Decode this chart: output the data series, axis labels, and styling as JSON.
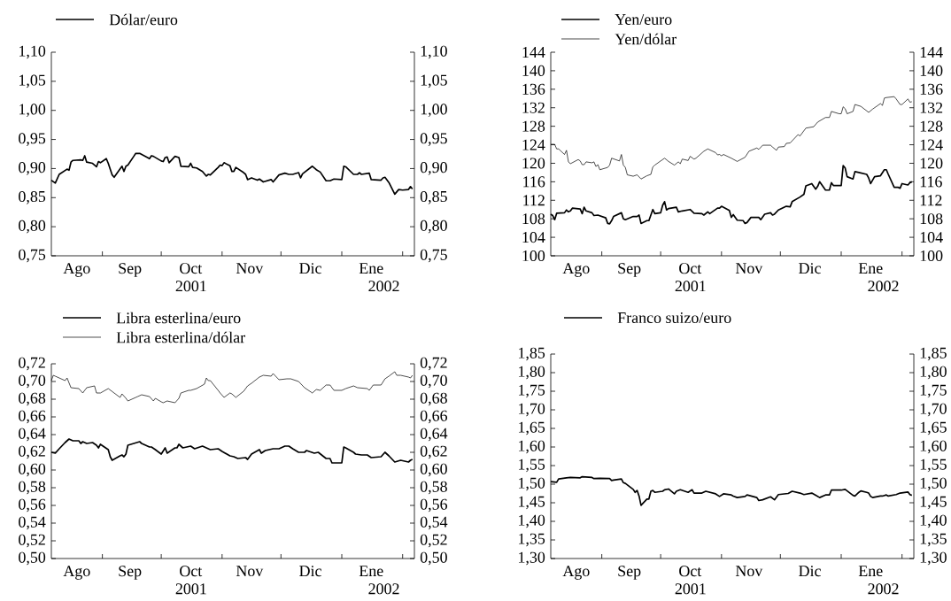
{
  "chart_data": [
    {
      "type": "line",
      "xlim": [
        "2001-08-06",
        "2002-02-07"
      ],
      "xticks": [
        {
          "value": "2001-08-19",
          "label": "Ago"
        },
        {
          "value": "2001-09-01",
          "label": null
        },
        {
          "value": "2001-09-15",
          "label": "Sep"
        },
        {
          "value": "2001-10-01",
          "label": null
        },
        {
          "value": "2001-10-16",
          "label": "Oct"
        },
        {
          "value": "2001-11-01",
          "label": null
        },
        {
          "value": "2001-11-15",
          "label": "Nov"
        },
        {
          "value": "2001-12-01",
          "label": null
        },
        {
          "value": "2001-12-16",
          "label": "Dic"
        },
        {
          "value": "2002-01-01",
          "label": null
        },
        {
          "value": "2002-01-16",
          "label": "Ene"
        },
        {
          "value": "2002-02-01",
          "label": null
        }
      ],
      "ylim": [
        0.75,
        1.1
      ],
      "yticks": [
        {
          "value": 0.75,
          "label": "0,75"
        },
        {
          "value": 0.8,
          "label": "0,80"
        },
        {
          "value": 0.85,
          "label": "0,85"
        },
        {
          "value": 0.9,
          "label": "0,90"
        },
        {
          "value": 0.95,
          "label": "0,95"
        },
        {
          "value": 1.0,
          "label": "1,00"
        },
        {
          "value": 1.05,
          "label": "1,05"
        },
        {
          "value": 1.1,
          "label": "1,10"
        }
      ],
      "y2lim": [
        0.75,
        1.1
      ],
      "y2ticks": [
        {
          "value": 0.75,
          "label": "0,75"
        },
        {
          "value": 0.8,
          "label": "0,80"
        },
        {
          "value": 0.85,
          "label": "0,85"
        },
        {
          "value": 0.9,
          "label": "0,90"
        },
        {
          "value": 0.95,
          "label": "0,95"
        },
        {
          "value": 1.0,
          "label": "1,00"
        },
        {
          "value": 1.05,
          "label": "1,05"
        },
        {
          "value": 1.1,
          "label": "1,10"
        }
      ],
      "legend": "top left",
      "annotations": [
        "2001",
        "2002"
      ],
      "series": [
        {
          "name": "Dólar/euro",
          "color": "#000000",
          "x": [
            "2001-08-06",
            "2001-08-08",
            "2001-08-10",
            "2001-08-14",
            "2001-08-15",
            "2001-08-16",
            "2001-08-17",
            "2001-08-21",
            "2001-08-22",
            "2001-08-23",
            "2001-08-24",
            "2001-08-27",
            "2001-08-29",
            "2001-08-30",
            "2001-08-31",
            "2001-09-03",
            "2001-09-04",
            "2001-09-06",
            "2001-09-07",
            "2001-09-11",
            "2001-09-12",
            "2001-09-13",
            "2001-09-14",
            "2001-09-17",
            "2001-09-18",
            "2001-09-20",
            "2001-09-24",
            "2001-09-25",
            "2001-09-26",
            "2001-09-27",
            "2001-10-01",
            "2001-10-02",
            "2001-10-03",
            "2001-10-04",
            "2001-10-05",
            "2001-10-08",
            "2001-10-10",
            "2001-10-11",
            "2001-10-15",
            "2001-10-16",
            "2001-10-17",
            "2001-10-19",
            "2001-10-22",
            "2001-10-24",
            "2001-10-25",
            "2001-10-26",
            "2001-10-30",
            "2001-10-31",
            "2001-11-01",
            "2001-11-02",
            "2001-11-05",
            "2001-11-06",
            "2001-11-07",
            "2001-11-08",
            "2001-11-12",
            "2001-11-13",
            "2001-11-14",
            "2001-11-16",
            "2001-11-19",
            "2001-11-20",
            "2001-11-22",
            "2001-11-26",
            "2001-11-27",
            "2001-11-30",
            "2001-12-03",
            "2001-12-05",
            "2001-12-07",
            "2001-12-10",
            "2001-12-11",
            "2001-12-12",
            "2001-12-17",
            "2001-12-19",
            "2001-12-21",
            "2001-12-24",
            "2001-12-26",
            "2001-12-28",
            "2002-01-01",
            "2002-01-02",
            "2002-01-03",
            "2002-01-07",
            "2002-01-09",
            "2002-01-10",
            "2002-01-11",
            "2002-01-15",
            "2002-01-16",
            "2002-01-21",
            "2002-01-22",
            "2002-01-23",
            "2002-01-25",
            "2002-01-28",
            "2002-01-30",
            "2002-02-01",
            "2002-02-04",
            "2002-02-05",
            "2002-02-06"
          ],
          "values": [
            0.88,
            0.875,
            0.89,
            0.899,
            0.897,
            0.911,
            0.914,
            0.915,
            0.914,
            0.922,
            0.911,
            0.909,
            0.903,
            0.912,
            0.91,
            0.917,
            0.909,
            0.889,
            0.885,
            0.904,
            0.895,
            0.904,
            0.906,
            0.921,
            0.926,
            0.926,
            0.919,
            0.917,
            0.922,
            0.921,
            0.913,
            0.912,
            0.919,
            0.92,
            0.91,
            0.921,
            0.919,
            0.904,
            0.903,
            0.909,
            0.902,
            0.901,
            0.895,
            0.887,
            0.89,
            0.889,
            0.902,
            0.906,
            0.905,
            0.91,
            0.905,
            0.895,
            0.895,
            0.902,
            0.893,
            0.89,
            0.881,
            0.884,
            0.88,
            0.882,
            0.877,
            0.881,
            0.877,
            0.889,
            0.892,
            0.89,
            0.89,
            0.893,
            0.884,
            0.891,
            0.904,
            0.898,
            0.894,
            0.879,
            0.879,
            0.882,
            0.881,
            0.904,
            0.903,
            0.89,
            0.89,
            0.893,
            0.89,
            0.892,
            0.881,
            0.88,
            0.884,
            0.885,
            0.876,
            0.856,
            0.864,
            0.863,
            0.864,
            0.869,
            0.865
          ]
        }
      ]
    },
    {
      "type": "line",
      "xlim": [
        "2001-08-06",
        "2002-02-07"
      ],
      "xticks": [
        {
          "value": "2001-08-19",
          "label": "Ago"
        },
        {
          "value": "2001-09-01",
          "label": null
        },
        {
          "value": "2001-09-15",
          "label": "Sep"
        },
        {
          "value": "2001-10-01",
          "label": null
        },
        {
          "value": "2001-10-16",
          "label": "Oct"
        },
        {
          "value": "2001-11-01",
          "label": null
        },
        {
          "value": "2001-11-15",
          "label": "Nov"
        },
        {
          "value": "2001-12-01",
          "label": null
        },
        {
          "value": "2001-12-16",
          "label": "Dic"
        },
        {
          "value": "2002-01-01",
          "label": null
        },
        {
          "value": "2002-01-16",
          "label": "Ene"
        },
        {
          "value": "2002-02-01",
          "label": null
        }
      ],
      "ylim": [
        100,
        144
      ],
      "yticks": [
        100,
        104,
        108,
        112,
        116,
        120,
        124,
        128,
        132,
        136,
        140,
        144
      ],
      "y2lim": [
        100,
        144
      ],
      "y2ticks": [
        100,
        104,
        108,
        112,
        116,
        120,
        124,
        128,
        132,
        136,
        140,
        144
      ],
      "legend": "top left",
      "annotations": [
        "2001",
        "2002"
      ],
      "series": [
        {
          "name": "Yen/euro",
          "color": "#000000",
          "x": [
            "2001-08-06",
            "2001-08-07",
            "2001-08-08",
            "2001-08-09",
            "2001-08-13",
            "2001-08-14",
            "2001-08-15",
            "2001-08-16",
            "2001-08-17",
            "2001-08-21",
            "2001-08-22",
            "2001-08-23",
            "2001-08-24",
            "2001-08-27",
            "2001-08-28",
            "2001-08-30",
            "2001-09-03",
            "2001-09-04",
            "2001-09-05",
            "2001-09-06",
            "2001-09-07",
            "2001-09-11",
            "2001-09-12",
            "2001-09-13",
            "2001-09-17",
            "2001-09-19",
            "2001-09-20",
            "2001-09-21",
            "2001-09-24",
            "2001-09-25",
            "2001-09-27",
            "2001-09-28",
            "2001-10-01",
            "2001-10-02",
            "2001-10-03",
            "2001-10-04",
            "2001-10-05",
            "2001-10-09",
            "2001-10-10",
            "2001-10-12",
            "2001-10-16",
            "2001-10-18",
            "2001-10-22",
            "2001-10-23",
            "2001-10-25",
            "2001-10-26",
            "2001-10-30",
            "2001-10-31",
            "2001-11-01",
            "2001-11-05",
            "2001-11-06",
            "2001-11-07",
            "2001-11-09",
            "2001-11-12",
            "2001-11-13",
            "2001-11-14",
            "2001-11-16",
            "2001-11-20",
            "2001-11-21",
            "2001-11-23",
            "2001-11-26",
            "2001-11-27",
            "2001-11-28",
            "2001-11-30",
            "2001-12-04",
            "2001-12-06",
            "2001-12-07",
            "2001-12-11",
            "2001-12-13",
            "2001-12-14",
            "2001-12-17",
            "2001-12-19",
            "2001-12-20",
            "2001-12-21",
            "2001-12-24",
            "2001-12-26",
            "2001-12-27",
            "2001-12-28",
            "2002-01-01",
            "2002-01-02",
            "2002-01-03",
            "2002-01-04",
            "2002-01-07",
            "2002-01-08",
            "2002-01-10",
            "2002-01-14",
            "2002-01-15",
            "2002-01-16",
            "2002-01-18",
            "2002-01-21",
            "2002-01-23",
            "2002-01-24",
            "2002-01-25",
            "2002-01-28",
            "2002-01-30",
            "2002-01-31",
            "2002-02-01",
            "2002-02-04",
            "2002-02-05",
            "2002-02-06"
          ],
          "values": [
            109.0,
            108.7,
            107.8,
            109.2,
            109.3,
            109.9,
            109.5,
            109.7,
            110.3,
            110.1,
            109.1,
            110.5,
            109.7,
            109.3,
            108.7,
            108.8,
            108.2,
            107.0,
            106.9,
            107.6,
            108.5,
            109.3,
            108.0,
            107.8,
            108.5,
            108.5,
            108.8,
            107.0,
            107.6,
            107.6,
            110.0,
            109.1,
            109.3,
            110.9,
            111.7,
            109.9,
            110.2,
            110.5,
            109.5,
            109.7,
            110.0,
            109.2,
            109.1,
            108.8,
            109.5,
            109.1,
            110.3,
            110.3,
            110.7,
            109.8,
            108.3,
            108.9,
            107.7,
            107.6,
            107.0,
            107.2,
            108.3,
            108.3,
            107.8,
            109.0,
            109.3,
            108.8,
            109.0,
            109.9,
            110.7,
            110.6,
            111.7,
            112.7,
            113.3,
            115.1,
            115.6,
            114.4,
            115.0,
            116.0,
            114.2,
            114.2,
            115.8,
            115.2,
            115.2,
            119.5,
            119.0,
            117.1,
            116.6,
            118.2,
            118.0,
            117.6,
            116.8,
            115.6,
            117.1,
            117.3,
            118.6,
            118.6,
            117.6,
            114.8,
            114.8,
            114.6,
            115.6,
            115.3,
            115.8,
            116.0
          ]
        },
        {
          "name": "Yen/dólar",
          "color": "#000000",
          "x": [
            "2001-08-06",
            "2001-08-08",
            "2001-08-09",
            "2001-08-10",
            "2001-08-13",
            "2001-08-14",
            "2001-08-15",
            "2001-08-16",
            "2001-08-20",
            "2001-08-21",
            "2001-08-22",
            "2001-08-23",
            "2001-08-24",
            "2001-08-27",
            "2001-08-28",
            "2001-08-29",
            "2001-08-30",
            "2001-08-31",
            "2001-09-04",
            "2001-09-05",
            "2001-09-06",
            "2001-09-10",
            "2001-09-11",
            "2001-09-12",
            "2001-09-13",
            "2001-09-14",
            "2001-09-17",
            "2001-09-19",
            "2001-09-21",
            "2001-09-24",
            "2001-09-26",
            "2001-09-27",
            "2001-09-28",
            "2001-10-03",
            "2001-10-05",
            "2001-10-08",
            "2001-10-10",
            "2001-10-11",
            "2001-10-12",
            "2001-10-15",
            "2001-10-16",
            "2001-10-18",
            "2001-10-19",
            "2001-10-23",
            "2001-10-25",
            "2001-10-29",
            "2001-10-30",
            "2001-10-31",
            "2001-11-01",
            "2001-11-02",
            "2001-11-06",
            "2001-11-09",
            "2001-11-13",
            "2001-11-15",
            "2001-11-19",
            "2001-11-20",
            "2001-11-22",
            "2001-11-26",
            "2001-11-27",
            "2001-11-29",
            "2001-11-30",
            "2001-12-03",
            "2001-12-04",
            "2001-12-06",
            "2001-12-10",
            "2001-12-11",
            "2001-12-14",
            "2001-12-18",
            "2001-12-20",
            "2001-12-24",
            "2001-12-26",
            "2001-12-27",
            "2001-12-31",
            "2002-01-01",
            "2002-01-02",
            "2002-01-03",
            "2002-01-04",
            "2002-01-07",
            "2002-01-08",
            "2002-01-11",
            "2002-01-15",
            "2002-01-17",
            "2002-01-21",
            "2002-01-22",
            "2002-01-23",
            "2002-01-24",
            "2002-01-28",
            "2002-01-29",
            "2002-01-31",
            "2002-02-01",
            "2002-02-04",
            "2002-02-05",
            "2002-02-06"
          ],
          "values": [
            124.1,
            124.1,
            123.1,
            123.1,
            121.9,
            122.8,
            120.3,
            119.9,
            120.8,
            120.5,
            119.7,
            119.7,
            120.3,
            120.1,
            120.3,
            119.3,
            119.7,
            118.6,
            119.1,
            119.6,
            121.1,
            120.5,
            121.9,
            119.6,
            119.1,
            117.5,
            117.2,
            117.5,
            116.6,
            117.3,
            117.6,
            119.2,
            119.6,
            121.1,
            120.4,
            119.6,
            120.3,
            119.9,
            120.9,
            120.6,
            121.5,
            120.9,
            121.1,
            122.6,
            123.1,
            122.3,
            121.8,
            121.9,
            121.6,
            121.9,
            121.1,
            120.4,
            121.3,
            122.6,
            123.3,
            123.0,
            123.9,
            123.9,
            123.5,
            122.8,
            123.5,
            123.6,
            124.3,
            124.4,
            126.2,
            125.9,
            127.6,
            127.9,
            128.9,
            129.9,
            129.9,
            131.2,
            130.7,
            130.7,
            132.2,
            131.8,
            130.7,
            131.2,
            132.7,
            132.3,
            131.0,
            131.7,
            132.9,
            132.5,
            134.1,
            134.2,
            134.4,
            133.9,
            132.7,
            132.7,
            133.9,
            133.2,
            133.3
          ]
        }
      ]
    },
    {
      "type": "line",
      "xlim": [
        "2001-08-06",
        "2002-02-07"
      ],
      "xticks": [
        {
          "value": "2001-08-19",
          "label": "Ago"
        },
        {
          "value": "2001-09-01",
          "label": null
        },
        {
          "value": "2001-09-15",
          "label": "Sep"
        },
        {
          "value": "2001-10-01",
          "label": null
        },
        {
          "value": "2001-10-16",
          "label": "Oct"
        },
        {
          "value": "2001-11-01",
          "label": null
        },
        {
          "value": "2001-11-15",
          "label": "Nov"
        },
        {
          "value": "2001-12-01",
          "label": null
        },
        {
          "value": "2001-12-16",
          "label": "Dic"
        },
        {
          "value": "2002-01-01",
          "label": null
        },
        {
          "value": "2002-01-16",
          "label": "Ene"
        },
        {
          "value": "2002-02-01",
          "label": null
        }
      ],
      "ylim": [
        0.5,
        0.72
      ],
      "yticks": [
        {
          "value": 0.5,
          "label": "0,50"
        },
        {
          "value": 0.52,
          "label": "0,52"
        },
        {
          "value": 0.54,
          "label": "0,54"
        },
        {
          "value": 0.56,
          "label": "0,56"
        },
        {
          "value": 0.58,
          "label": "0,58"
        },
        {
          "value": 0.6,
          "label": "0,60"
        },
        {
          "value": 0.62,
          "label": "0,62"
        },
        {
          "value": 0.64,
          "label": "0,64"
        },
        {
          "value": 0.66,
          "label": "0,66"
        },
        {
          "value": 0.68,
          "label": "0,68"
        },
        {
          "value": 0.7,
          "label": "0,70"
        },
        {
          "value": 0.72,
          "label": "0,72"
        }
      ],
      "y2lim": [
        0.5,
        0.72
      ],
      "y2ticks": [
        {
          "value": 0.5,
          "label": "0,50"
        },
        {
          "value": 0.52,
          "label": "0,52"
        },
        {
          "value": 0.54,
          "label": "0,54"
        },
        {
          "value": 0.56,
          "label": "0,56"
        },
        {
          "value": 0.58,
          "label": "0,58"
        },
        {
          "value": 0.6,
          "label": "0,60"
        },
        {
          "value": 0.62,
          "label": "0,62"
        },
        {
          "value": 0.64,
          "label": "0,64"
        },
        {
          "value": 0.66,
          "label": "0,66"
        },
        {
          "value": 0.68,
          "label": "0,68"
        },
        {
          "value": 0.7,
          "label": "0,70"
        },
        {
          "value": 0.72,
          "label": "0,72"
        }
      ],
      "legend": "top left",
      "annotations": [
        "2001",
        "2002"
      ],
      "series": [
        {
          "name": "Libra esterlina/euro",
          "color": "#000000",
          "x": [
            "2001-08-06",
            "2001-08-08",
            "2001-08-10",
            "2001-08-13",
            "2001-08-15",
            "2001-08-17",
            "2001-08-20",
            "2001-08-21",
            "2001-08-22",
            "2001-08-24",
            "2001-08-27",
            "2001-08-29",
            "2001-08-30",
            "2001-08-31",
            "2001-09-04",
            "2001-09-05",
            "2001-09-06",
            "2001-09-10",
            "2001-09-11",
            "2001-09-12",
            "2001-09-13",
            "2001-09-14",
            "2001-09-17",
            "2001-09-20",
            "2001-09-21",
            "2001-09-25",
            "2001-09-26",
            "2001-09-28",
            "2001-10-01",
            "2001-10-03",
            "2001-10-04",
            "2001-10-08",
            "2001-10-09",
            "2001-10-10",
            "2001-10-12",
            "2001-10-16",
            "2001-10-18",
            "2001-10-22",
            "2001-10-24",
            "2001-10-26",
            "2001-10-30",
            "2001-11-01",
            "2001-11-05",
            "2001-11-07",
            "2001-11-09",
            "2001-11-13",
            "2001-11-14",
            "2001-11-16",
            "2001-11-20",
            "2001-11-21",
            "2001-11-23",
            "2001-11-27",
            "2001-11-30",
            "2001-12-03",
            "2001-12-05",
            "2001-12-07",
            "2001-12-10",
            "2001-12-13",
            "2001-12-14",
            "2001-12-18",
            "2001-12-20",
            "2001-12-24",
            "2001-12-26",
            "2001-12-27",
            "2002-01-01",
            "2002-01-02",
            "2002-01-03",
            "2002-01-07",
            "2002-01-08",
            "2002-01-11",
            "2002-01-14",
            "2002-01-16",
            "2002-01-21",
            "2002-01-23",
            "2002-01-25",
            "2002-01-28",
            "2002-01-31",
            "2002-02-04",
            "2002-02-05",
            "2002-02-06"
          ],
          "values": [
            0.62,
            0.619,
            0.624,
            0.631,
            0.635,
            0.633,
            0.633,
            0.63,
            0.632,
            0.63,
            0.631,
            0.628,
            0.625,
            0.629,
            0.623,
            0.615,
            0.611,
            0.616,
            0.617,
            0.615,
            0.618,
            0.628,
            0.63,
            0.632,
            0.63,
            0.626,
            0.626,
            0.623,
            0.618,
            0.625,
            0.619,
            0.625,
            0.625,
            0.629,
            0.625,
            0.627,
            0.624,
            0.627,
            0.625,
            0.623,
            0.624,
            0.621,
            0.616,
            0.615,
            0.613,
            0.614,
            0.612,
            0.618,
            0.623,
            0.619,
            0.622,
            0.624,
            0.624,
            0.627,
            0.627,
            0.624,
            0.62,
            0.62,
            0.622,
            0.619,
            0.62,
            0.613,
            0.613,
            0.608,
            0.608,
            0.626,
            0.625,
            0.62,
            0.618,
            0.617,
            0.617,
            0.614,
            0.615,
            0.62,
            0.616,
            0.609,
            0.611,
            0.609,
            0.611,
            0.612
          ]
        },
        {
          "name": "Libra esterlina/dólar",
          "color": "#000000",
          "x": [
            "2001-08-06",
            "2001-08-07",
            "2001-08-08",
            "2001-08-13",
            "2001-08-14",
            "2001-08-16",
            "2001-08-20",
            "2001-08-22",
            "2001-08-24",
            "2001-08-28",
            "2001-08-29",
            "2001-08-31",
            "2001-09-04",
            "2001-09-07",
            "2001-09-10",
            "2001-09-11",
            "2001-09-13",
            "2001-09-14",
            "2001-09-18",
            "2001-09-19",
            "2001-09-21",
            "2001-09-25",
            "2001-09-27",
            "2001-09-28",
            "2001-10-01",
            "2001-10-02",
            "2001-10-04",
            "2001-10-08",
            "2001-10-10",
            "2001-10-11",
            "2001-10-15",
            "2001-10-16",
            "2001-10-19",
            "2001-10-23",
            "2001-10-24",
            "2001-10-25",
            "2001-10-26",
            "2001-10-30",
            "2001-10-31",
            "2001-11-02",
            "2001-11-05",
            "2001-11-06",
            "2001-11-08",
            "2001-11-12",
            "2001-11-14",
            "2001-11-16",
            "2001-11-20",
            "2001-11-22",
            "2001-11-26",
            "2001-11-27",
            "2001-11-30",
            "2001-12-04",
            "2001-12-06",
            "2001-12-10",
            "2001-12-13",
            "2001-12-17",
            "2001-12-19",
            "2001-12-21",
            "2001-12-24",
            "2001-12-26",
            "2001-12-28",
            "2002-01-01",
            "2002-01-03",
            "2002-01-07",
            "2002-01-09",
            "2002-01-14",
            "2002-01-15",
            "2002-01-17",
            "2002-01-21",
            "2002-01-23",
            "2002-01-25",
            "2002-01-28",
            "2002-01-29",
            "2002-01-31",
            "2002-02-04",
            "2002-02-05",
            "2002-02-06"
          ],
          "values": [
            0.701,
            0.707,
            0.706,
            0.701,
            0.704,
            0.693,
            0.692,
            0.687,
            0.693,
            0.695,
            0.687,
            0.687,
            0.692,
            0.687,
            0.682,
            0.686,
            0.681,
            0.678,
            0.682,
            0.683,
            0.685,
            0.683,
            0.678,
            0.681,
            0.677,
            0.676,
            0.678,
            0.676,
            0.681,
            0.687,
            0.69,
            0.69,
            0.692,
            0.697,
            0.704,
            0.701,
            0.701,
            0.69,
            0.687,
            0.682,
            0.687,
            0.686,
            0.682,
            0.689,
            0.695,
            0.698,
            0.705,
            0.707,
            0.706,
            0.709,
            0.702,
            0.703,
            0.703,
            0.7,
            0.693,
            0.687,
            0.691,
            0.69,
            0.696,
            0.696,
            0.69,
            0.69,
            0.692,
            0.695,
            0.693,
            0.692,
            0.69,
            0.696,
            0.696,
            0.703,
            0.706,
            0.711,
            0.707,
            0.707,
            0.705,
            0.704,
            0.707
          ]
        }
      ]
    },
    {
      "type": "line",
      "xlim": [
        "2001-08-06",
        "2002-02-07"
      ],
      "xticks": [
        {
          "value": "2001-08-19",
          "label": "Ago"
        },
        {
          "value": "2001-09-01",
          "label": null
        },
        {
          "value": "2001-09-15",
          "label": "Sep"
        },
        {
          "value": "2001-10-01",
          "label": null
        },
        {
          "value": "2001-10-16",
          "label": "Oct"
        },
        {
          "value": "2001-11-01",
          "label": null
        },
        {
          "value": "2001-11-15",
          "label": "Nov"
        },
        {
          "value": "2001-12-01",
          "label": null
        },
        {
          "value": "2001-12-16",
          "label": "Dic"
        },
        {
          "value": "2002-01-01",
          "label": null
        },
        {
          "value": "2002-01-16",
          "label": "Ene"
        },
        {
          "value": "2002-02-01",
          "label": null
        }
      ],
      "ylim": [
        1.3,
        1.85
      ],
      "yticks": [
        {
          "value": 1.3,
          "label": "1,30"
        },
        {
          "value": 1.35,
          "label": "1,35"
        },
        {
          "value": 1.4,
          "label": "1,40"
        },
        {
          "value": 1.45,
          "label": "1,45"
        },
        {
          "value": 1.5,
          "label": "1,50"
        },
        {
          "value": 1.55,
          "label": "1,55"
        },
        {
          "value": 1.6,
          "label": "1,60"
        },
        {
          "value": 1.65,
          "label": "1,65"
        },
        {
          "value": 1.7,
          "label": "1,70"
        },
        {
          "value": 1.75,
          "label": "1,75"
        },
        {
          "value": 1.8,
          "label": "1,80"
        },
        {
          "value": 1.85,
          "label": "1,85"
        }
      ],
      "y2lim": [
        1.3,
        1.85
      ],
      "y2ticks": [
        {
          "value": 1.3,
          "label": "1,30"
        },
        {
          "value": 1.35,
          "label": "1,35"
        },
        {
          "value": 1.4,
          "label": "1,40"
        },
        {
          "value": 1.45,
          "label": "1,45"
        },
        {
          "value": 1.5,
          "label": "1,50"
        },
        {
          "value": 1.55,
          "label": "1,55"
        },
        {
          "value": 1.6,
          "label": "1,60"
        },
        {
          "value": 1.65,
          "label": "1,65"
        },
        {
          "value": 1.7,
          "label": "1,70"
        },
        {
          "value": 1.75,
          "label": "1,75"
        },
        {
          "value": 1.8,
          "label": "1,80"
        },
        {
          "value": 1.85,
          "label": "1,85"
        }
      ],
      "legend": "top left",
      "annotations": [
        "2001",
        "2002"
      ],
      "series": [
        {
          "name": "Franco suizo/euro",
          "color": "#000000",
          "x": [
            "2001-08-06",
            "2001-08-09",
            "2001-08-10",
            "2001-08-14",
            "2001-08-16",
            "2001-08-21",
            "2001-08-22",
            "2001-08-27",
            "2001-08-28",
            "2001-08-31",
            "2001-09-05",
            "2001-09-06",
            "2001-09-07",
            "2001-09-11",
            "2001-09-12",
            "2001-09-13",
            "2001-09-17",
            "2001-09-18",
            "2001-09-19",
            "2001-09-20",
            "2001-09-21",
            "2001-09-24",
            "2001-09-25",
            "2001-09-26",
            "2001-09-27",
            "2001-09-28",
            "2001-10-02",
            "2001-10-03",
            "2001-10-05",
            "2001-10-08",
            "2001-10-09",
            "2001-10-11",
            "2001-10-15",
            "2001-10-17",
            "2001-10-18",
            "2001-10-22",
            "2001-10-24",
            "2001-10-29",
            "2001-10-31",
            "2001-11-02",
            "2001-11-06",
            "2001-11-07",
            "2001-11-09",
            "2001-11-13",
            "2001-11-14",
            "2001-11-19",
            "2001-11-20",
            "2001-11-22",
            "2001-11-26",
            "2001-11-28",
            "2001-11-30",
            "2001-12-05",
            "2001-12-07",
            "2001-12-11",
            "2001-12-13",
            "2001-12-17",
            "2001-12-19",
            "2001-12-21",
            "2001-12-24",
            "2001-12-26",
            "2001-12-27",
            "2002-01-01",
            "2002-01-03",
            "2002-01-07",
            "2002-01-08",
            "2002-01-10",
            "2002-01-11",
            "2002-01-14",
            "2002-01-15",
            "2002-01-16",
            "2002-01-17",
            "2002-01-21",
            "2002-01-22",
            "2002-01-24",
            "2002-01-25",
            "2002-01-29",
            "2002-01-31",
            "2002-02-04",
            "2002-02-05",
            "2002-02-06"
          ],
          "values": [
            1.507,
            1.505,
            1.514,
            1.517,
            1.518,
            1.517,
            1.52,
            1.518,
            1.515,
            1.516,
            1.515,
            1.51,
            1.511,
            1.514,
            1.504,
            1.502,
            1.486,
            1.478,
            1.483,
            1.468,
            1.443,
            1.46,
            1.46,
            1.481,
            1.483,
            1.478,
            1.481,
            1.485,
            1.487,
            1.474,
            1.481,
            1.485,
            1.478,
            1.485,
            1.476,
            1.476,
            1.481,
            1.474,
            1.467,
            1.474,
            1.471,
            1.468,
            1.464,
            1.467,
            1.471,
            1.464,
            1.456,
            1.458,
            1.466,
            1.458,
            1.472,
            1.475,
            1.481,
            1.476,
            1.472,
            1.476,
            1.47,
            1.464,
            1.471,
            1.471,
            1.484,
            1.484,
            1.486,
            1.47,
            1.468,
            1.478,
            1.482,
            1.478,
            1.476,
            1.467,
            1.464,
            1.468,
            1.468,
            1.471,
            1.468,
            1.472,
            1.476,
            1.479,
            1.472,
            1.47
          ]
        }
      ]
    }
  ]
}
